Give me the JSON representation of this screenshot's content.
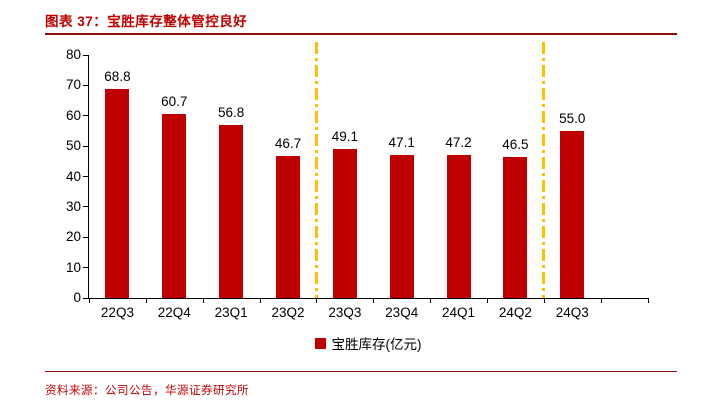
{
  "header": {
    "title": "图表 37：宝胜库存整体管控良好"
  },
  "footer": {
    "source": "资料来源：公司公告，华源证券研究所"
  },
  "colors": {
    "bar_fill": "#c00000",
    "dash_line": "#ffc000",
    "accent": "#c00000",
    "rule": "#8f0d09"
  },
  "chart_data": {
    "type": "bar",
    "title": "宝胜库存整体管控良好",
    "categories": [
      "22Q3",
      "22Q4",
      "23Q1",
      "23Q2",
      "23Q3",
      "23Q4",
      "24Q1",
      "24Q2",
      "24Q3"
    ],
    "values": [
      68.8,
      60.7,
      56.8,
      46.7,
      49.1,
      47.1,
      47.2,
      46.5,
      55.0
    ],
    "value_labels": [
      "68.8",
      "60.7",
      "56.8",
      "46.7",
      "49.1",
      "47.1",
      "47.2",
      "46.5",
      "55.0"
    ],
    "xlabel": "",
    "ylabel": "",
    "ylim": [
      0,
      80
    ],
    "ytick_step": 10,
    "grid": false,
    "legend_label": "宝胜库存(亿元)",
    "legend_position": "bottom",
    "separator_after": [
      "23Q2",
      "24Q2"
    ]
  }
}
